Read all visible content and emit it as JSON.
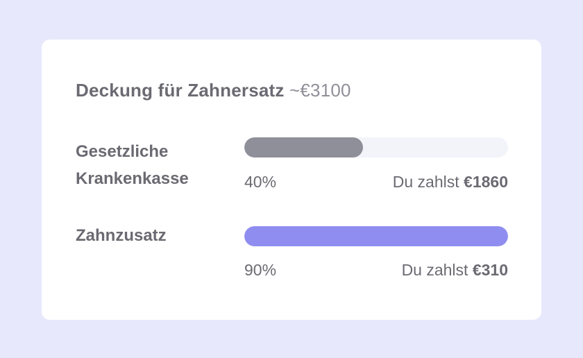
{
  "title": {
    "text": "Deckung für Zahnersatz",
    "amount": "~€3100"
  },
  "rows": [
    {
      "label_line1": "Gesetzliche",
      "label_line2": "Krankenkasse",
      "percent": "40%",
      "pay_prefix": "Du zahlst",
      "pay_amount": "€1860",
      "bar_fill": 0.45,
      "bar_color": "#8f8f99"
    },
    {
      "label_line1": "Zahnzusatz",
      "label_line2": "",
      "percent": "90%",
      "pay_prefix": "Du zahlst",
      "pay_amount": "€310",
      "bar_fill": 1.0,
      "bar_color": "#8f8ef0"
    }
  ],
  "colors": {
    "background": "#e8e8fd",
    "track": "#f3f4fa",
    "text": "#6b6a72"
  }
}
